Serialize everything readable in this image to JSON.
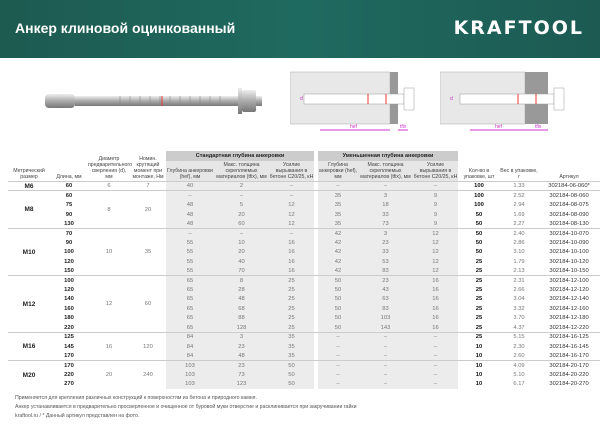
{
  "header": {
    "title": "Анкер клиновой оцинкованный",
    "brand": "KRAFTOOL",
    "brand_color": "#1f6a60"
  },
  "diagram_labels": {
    "d": "d",
    "hef": "hef",
    "tfix": "tfix"
  },
  "table": {
    "headers": {
      "size": "Метрический размер",
      "length": "Длина, мм",
      "diameter": "Диаметр предварительного сверления (d), мм",
      "torque": "Номин. крутящий момент при монтаже, Нм",
      "standard_group": "Стандартная глубина анкеровки",
      "reduced_group": "Уменьшенная глубина анкеровки",
      "depth": "Глубина анкеровки (hef), мм",
      "thickness": "Макс. толщина скрепляемых материалов (tfix), мм",
      "force": "Усилие вырывания в бетоне C20/25, кН",
      "qty": "Кол-во в упаковке, шт",
      "weight": "Вес в упаковке, г",
      "article": "Артикул"
    },
    "groups": [
      {
        "size": "M6",
        "diameter": "6",
        "torque": "7",
        "rows": [
          [
            "60",
            "40",
            "2",
            "–",
            "–",
            "–",
            "–",
            "100",
            "1.33",
            "302184-06-060*"
          ]
        ]
      },
      {
        "size": "M8",
        "diameter": "8",
        "torque": "20",
        "rows": [
          [
            "60",
            "–",
            "–",
            "–",
            "35",
            "3",
            "9",
            "100",
            "2.52",
            "302184-08-060"
          ],
          [
            "75",
            "48",
            "5",
            "12",
            "35",
            "18",
            "9",
            "100",
            "2.94",
            "302184-08-075"
          ],
          [
            "90",
            "48",
            "20",
            "12",
            "35",
            "33",
            "9",
            "50",
            "1.69",
            "302184-08-090"
          ],
          [
            "130",
            "48",
            "60",
            "12",
            "35",
            "73",
            "9",
            "50",
            "2.27",
            "302184-08-130"
          ]
        ]
      },
      {
        "size": "M10",
        "diameter": "10",
        "torque": "35",
        "rows": [
          [
            "70",
            "–",
            "–",
            "–",
            "42",
            "3",
            "12",
            "50",
            "2.40",
            "302184-10-070"
          ],
          [
            "90",
            "55",
            "10",
            "16",
            "42",
            "23",
            "12",
            "50",
            "2.86",
            "302184-10-090"
          ],
          [
            "100",
            "55",
            "20",
            "16",
            "42",
            "33",
            "12",
            "50",
            "3.10",
            "302184-10-100"
          ],
          [
            "120",
            "55",
            "40",
            "16",
            "42",
            "53",
            "12",
            "25",
            "1.79",
            "302184-10-120"
          ],
          [
            "150",
            "55",
            "70",
            "16",
            "42",
            "83",
            "12",
            "25",
            "2.13",
            "302184-10-150"
          ]
        ]
      },
      {
        "size": "M12",
        "diameter": "12",
        "torque": "60",
        "rows": [
          [
            "100",
            "65",
            "8",
            "25",
            "50",
            "23",
            "16",
            "25",
            "2.31",
            "302184-12-100"
          ],
          [
            "120",
            "65",
            "28",
            "25",
            "50",
            "43",
            "16",
            "25",
            "2.66",
            "302184-12-120"
          ],
          [
            "140",
            "65",
            "48",
            "25",
            "50",
            "63",
            "16",
            "25",
            "3.04",
            "302184-12-140"
          ],
          [
            "160",
            "65",
            "68",
            "25",
            "50",
            "83",
            "16",
            "25",
            "3.32",
            "302184-12-160"
          ],
          [
            "180",
            "65",
            "88",
            "25",
            "50",
            "103",
            "16",
            "25",
            "3.70",
            "302184-12-180"
          ],
          [
            "220",
            "65",
            "128",
            "25",
            "50",
            "143",
            "16",
            "25",
            "4.37",
            "302184-12-220"
          ]
        ]
      },
      {
        "size": "M16",
        "diameter": "16",
        "torque": "120",
        "rows": [
          [
            "125",
            "84",
            "3",
            "35",
            "–",
            "–",
            "–",
            "25",
            "5.15",
            "302184-16-125"
          ],
          [
            "145",
            "84",
            "23",
            "35",
            "–",
            "–",
            "–",
            "10",
            "2.30",
            "302184-16-145"
          ],
          [
            "170",
            "84",
            "48",
            "35",
            "–",
            "–",
            "–",
            "10",
            "2.60",
            "302184-16-170"
          ]
        ]
      },
      {
        "size": "M20",
        "diameter": "20",
        "torque": "240",
        "rows": [
          [
            "170",
            "103",
            "23",
            "50",
            "–",
            "–",
            "–",
            "10",
            "4.09",
            "302184-20-170"
          ],
          [
            "220",
            "103",
            "73",
            "50",
            "–",
            "–",
            "–",
            "10",
            "5.10",
            "302184-20-220"
          ],
          [
            "270",
            "103",
            "123",
            "50",
            "–",
            "–",
            "–",
            "10",
            "6.17",
            "302184-20-270"
          ]
        ]
      }
    ]
  },
  "footer": {
    "line1": "Применяется для крепления различных конструкций к поверхностям из бетона и природного камня.",
    "line2": "Анкер устанавливается в предварительно просверленное и очищенное от буровой муки отверстие и расклинивается при закручивании гайки",
    "line3": "kraftool.ru  /  * Данный артикул представлен на фото."
  }
}
